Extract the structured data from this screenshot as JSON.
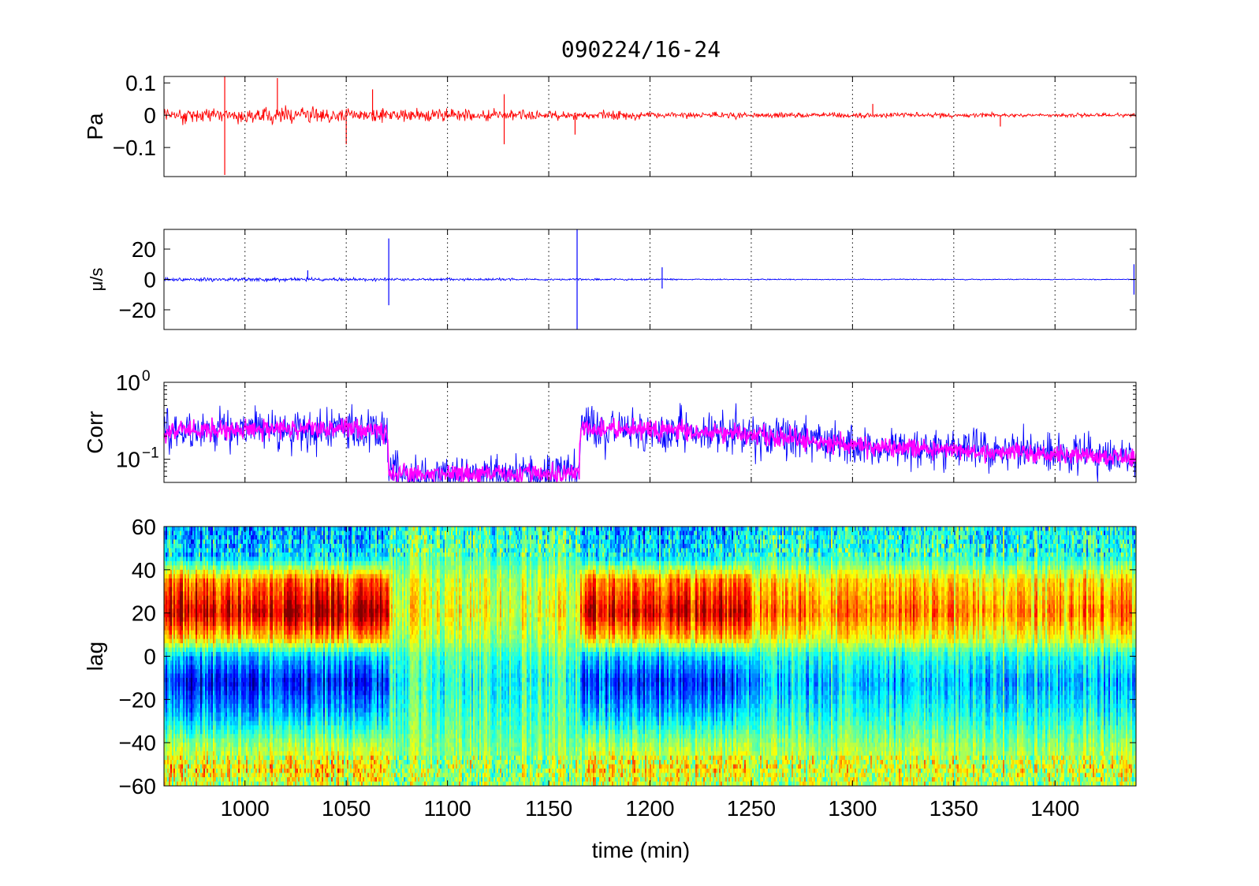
{
  "chart_data": [
    {
      "type": "line",
      "title": "090224/16-24",
      "ylabel": "Pa",
      "xlim": [
        960,
        1440
      ],
      "ylim": [
        -0.19,
        0.12
      ],
      "yticks": [
        {
          "value": 0.1,
          "label": "0.1"
        },
        {
          "value": 0,
          "label": "0"
        },
        {
          "value": -0.1,
          "label": "−0.1"
        }
      ],
      "xticks": [
        1000,
        1050,
        1100,
        1150,
        1200,
        1250,
        1300,
        1350,
        1400
      ],
      "grid": "x-dotted",
      "series": [
        {
          "color": "#ff0000",
          "envelope": {
            "x": [
              960,
              1050,
              1150,
              1250,
              1350,
              1440
            ],
            "amplitude": [
              0.03,
              0.028,
              0.018,
              0.011,
              0.009,
              0.007
            ]
          },
          "spikes": [
            {
              "x": 990,
              "y": -0.185
            },
            {
              "x": 990,
              "y": 0.12
            },
            {
              "x": 1016,
              "y": 0.115
            },
            {
              "x": 1050,
              "y": -0.09
            },
            {
              "x": 1063,
              "y": 0.08
            },
            {
              "x": 1128,
              "y": -0.09
            },
            {
              "x": 1128,
              "y": 0.065
            },
            {
              "x": 1163,
              "y": -0.06
            },
            {
              "x": 1310,
              "y": 0.035
            },
            {
              "x": 1373,
              "y": -0.035
            }
          ]
        }
      ]
    },
    {
      "type": "line",
      "ylabel": "μ/s",
      "xlim": [
        960,
        1440
      ],
      "ylim": [
        -33,
        33
      ],
      "yticks": [
        {
          "value": 20,
          "label": "20"
        },
        {
          "value": 0,
          "label": "0"
        },
        {
          "value": -20,
          "label": "−20"
        }
      ],
      "xticks": [
        1000,
        1050,
        1100,
        1150,
        1200,
        1250,
        1300,
        1350,
        1400
      ],
      "grid": "x-dotted",
      "series": [
        {
          "color": "#0000ff",
          "envelope": {
            "x": [
              960,
              1070,
              1165,
              1250,
              1440
            ],
            "amplitude": [
              1.6,
              1.2,
              0.7,
              0.45,
              0.35
            ]
          },
          "spikes": [
            {
              "x": 1031,
              "y": 6
            },
            {
              "x": 1071,
              "y": 27
            },
            {
              "x": 1071,
              "y": -17
            },
            {
              "x": 1164,
              "y": 33
            },
            {
              "x": 1164,
              "y": -33
            },
            {
              "x": 1206,
              "y": 8
            },
            {
              "x": 1206,
              "y": -6
            },
            {
              "x": 1439,
              "y": 10
            },
            {
              "x": 1439,
              "y": -10
            }
          ]
        }
      ]
    },
    {
      "type": "line",
      "ylabel": "Corr",
      "yscale": "log",
      "xlim": [
        960,
        1440
      ],
      "ylim": [
        0.05,
        1.0
      ],
      "yticks": [
        {
          "value": 1.0,
          "label": "10",
          "exponent": "0"
        },
        {
          "value": 0.1,
          "label": "10",
          "exponent": "−1"
        }
      ],
      "xticks": [
        1000,
        1050,
        1100,
        1150,
        1200,
        1250,
        1300,
        1350,
        1400
      ],
      "grid": "x-dotted",
      "series": [
        {
          "color": "#0000ff",
          "level": {
            "x": [
              960,
              1000,
              1050,
              1070,
              1071,
              1165,
              1166,
              1200,
              1240,
              1300,
              1350,
              1400,
              1440
            ],
            "y": [
              0.23,
              0.24,
              0.26,
              0.22,
              0.065,
              0.065,
              0.25,
              0.24,
              0.22,
              0.15,
              0.13,
              0.12,
              0.1
            ]
          },
          "spread": 1.6
        },
        {
          "color": "#ff00ff",
          "level": {
            "x": [
              960,
              1000,
              1050,
              1070,
              1071,
              1165,
              1166,
              1200,
              1240,
              1300,
              1350,
              1400,
              1440
            ],
            "y": [
              0.23,
              0.24,
              0.26,
              0.22,
              0.065,
              0.065,
              0.25,
              0.24,
              0.22,
              0.15,
              0.13,
              0.12,
              0.1
            ]
          },
          "spread": 1.25
        }
      ]
    },
    {
      "type": "heatmap",
      "ylabel": "lag",
      "xlabel": "time (min)",
      "xlim": [
        960,
        1440
      ],
      "ylim": [
        -60,
        60
      ],
      "yticks": [
        {
          "value": 60,
          "label": "60"
        },
        {
          "value": 40,
          "label": "40"
        },
        {
          "value": 20,
          "label": "20"
        },
        {
          "value": 0,
          "label": "0"
        },
        {
          "value": -20,
          "label": "−20"
        },
        {
          "value": -40,
          "label": "−40"
        },
        {
          "value": -60,
          "label": "−60"
        }
      ],
      "xticks": [
        1000,
        1050,
        1100,
        1150,
        1200,
        1250,
        1300,
        1350,
        1400
      ],
      "colormap": "jet",
      "segments": [
        {
          "x": [
            960,
            1071
          ],
          "strength": 1.0
        },
        {
          "x": [
            1071,
            1165
          ],
          "strength": 0.25
        },
        {
          "x": [
            1165,
            1250
          ],
          "strength": 0.9
        },
        {
          "x": [
            1250,
            1440
          ],
          "strength": 0.55
        }
      ],
      "profile": {
        "lag": [
          60,
          45,
          35,
          20,
          8,
          0,
          -12,
          -28,
          -40,
          -52,
          -60
        ],
        "value": [
          -0.5,
          -0.3,
          0.6,
          1.0,
          0.4,
          -0.4,
          -0.8,
          -0.4,
          0.05,
          0.35,
          0.15
        ]
      }
    }
  ]
}
